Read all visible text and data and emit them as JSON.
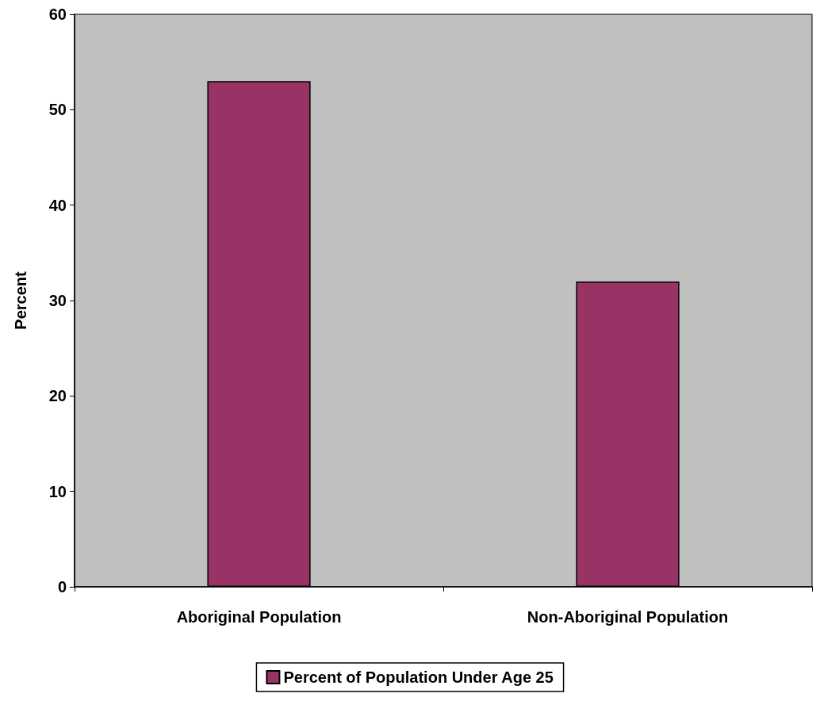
{
  "chart_data": {
    "type": "bar",
    "ylabel": "Percent",
    "categories": [
      "Aboriginal Population",
      "Non-Aboriginal Population"
    ],
    "series": [
      {
        "name": "Percent of Population Under Age 25",
        "color": "#993366",
        "values": [
          53,
          32
        ]
      }
    ],
    "ylim": [
      0,
      60
    ],
    "yticks": [
      0,
      10,
      20,
      30,
      40,
      50,
      60
    ],
    "grid": false,
    "legend": "bottom"
  }
}
